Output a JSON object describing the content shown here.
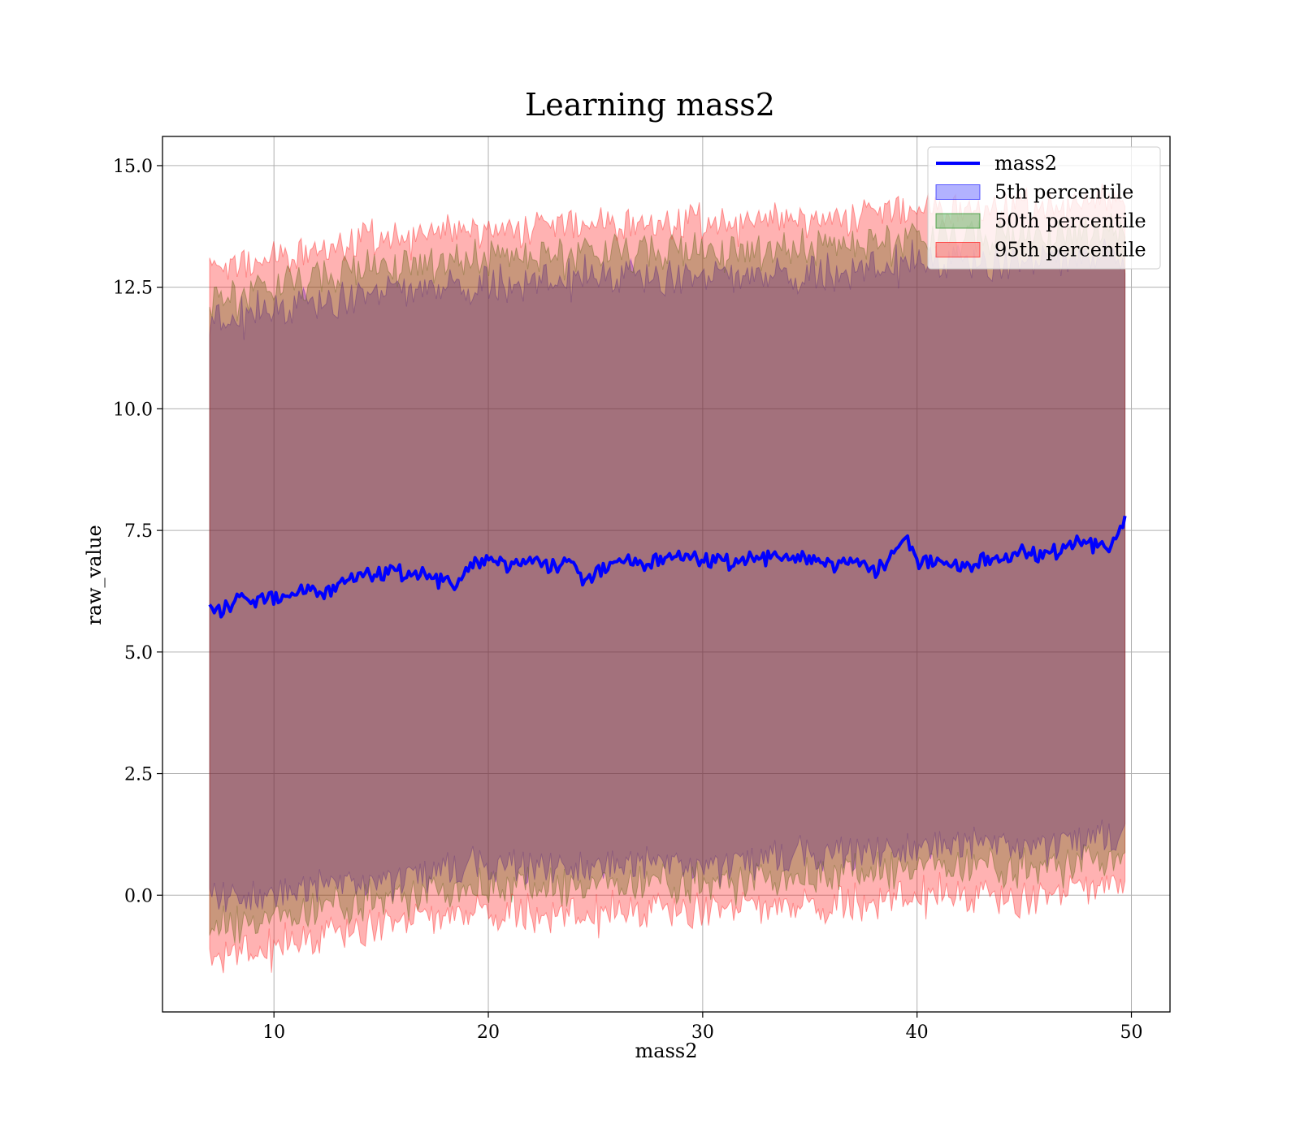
{
  "chart_data": {
    "type": "area",
    "title": "Learning mass2",
    "xlabel": "mass2",
    "ylabel": "raw_value",
    "xlim": [
      4.8,
      51.8
    ],
    "ylim": [
      -2.4,
      15.6
    ],
    "xticks": [
      10,
      20,
      30,
      40,
      50
    ],
    "xtick_labels": [
      "10",
      "20",
      "30",
      "40",
      "50"
    ],
    "yticks": [
      0.0,
      2.5,
      5.0,
      7.5,
      10.0,
      12.5,
      15.0
    ],
    "ytick_labels": [
      "0.0",
      "2.5",
      "5.0",
      "7.5",
      "10.0",
      "12.5",
      "15.0"
    ],
    "grid": true,
    "legend_position": "top-right",
    "x_range": [
      7.0,
      49.7
    ],
    "line": {
      "name": "mass2",
      "color": "#0000ff",
      "points": [
        [
          7.0,
          5.9
        ],
        [
          7.5,
          5.9
        ],
        [
          8.0,
          6.0
        ],
        [
          8.5,
          6.1
        ],
        [
          9.0,
          6.0
        ],
        [
          9.5,
          6.1
        ],
        [
          10.0,
          6.1
        ],
        [
          11.0,
          6.2
        ],
        [
          12.0,
          6.3
        ],
        [
          12.5,
          6.2
        ],
        [
          13.0,
          6.4
        ],
        [
          14.0,
          6.6
        ],
        [
          15.0,
          6.6
        ],
        [
          16.0,
          6.6
        ],
        [
          17.0,
          6.6
        ],
        [
          18.0,
          6.5
        ],
        [
          18.5,
          6.3
        ],
        [
          19.0,
          6.7
        ],
        [
          20.0,
          6.9
        ],
        [
          21.0,
          6.8
        ],
        [
          22.0,
          6.9
        ],
        [
          23.0,
          6.8
        ],
        [
          24.0,
          6.8
        ],
        [
          24.5,
          6.4
        ],
        [
          25.0,
          6.6
        ],
        [
          26.0,
          6.9
        ],
        [
          27.0,
          6.8
        ],
        [
          28.0,
          6.9
        ],
        [
          29.0,
          7.0
        ],
        [
          30.0,
          6.9
        ],
        [
          31.0,
          6.8
        ],
        [
          32.0,
          6.9
        ],
        [
          33.0,
          7.0
        ],
        [
          34.0,
          6.9
        ],
        [
          35.0,
          6.9
        ],
        [
          36.0,
          6.8
        ],
        [
          37.0,
          6.9
        ],
        [
          38.0,
          6.7
        ],
        [
          39.0,
          7.0
        ],
        [
          39.5,
          7.4
        ],
        [
          40.0,
          6.8
        ],
        [
          41.0,
          6.9
        ],
        [
          42.0,
          6.7
        ],
        [
          43.0,
          6.9
        ],
        [
          44.0,
          6.9
        ],
        [
          45.0,
          7.1
        ],
        [
          46.0,
          6.9
        ],
        [
          47.0,
          7.2
        ],
        [
          48.0,
          7.3
        ],
        [
          49.0,
          7.1
        ],
        [
          49.7,
          7.7
        ]
      ]
    },
    "series": [
      {
        "name": "5th percentile",
        "color": "#0000ff",
        "opacity": 0.3,
        "lower": [
          [
            7.0,
            0.0
          ],
          [
            10.0,
            0.0
          ],
          [
            15.0,
            0.3
          ],
          [
            20.0,
            0.6
          ],
          [
            25.0,
            0.6
          ],
          [
            30.0,
            0.6
          ],
          [
            35.0,
            0.8
          ],
          [
            40.0,
            1.0
          ],
          [
            45.0,
            1.0
          ],
          [
            49.7,
            1.2
          ]
        ],
        "upper": [
          [
            7.0,
            11.8
          ],
          [
            10.0,
            12.0
          ],
          [
            15.0,
            12.4
          ],
          [
            20.0,
            12.6
          ],
          [
            25.0,
            12.7
          ],
          [
            30.0,
            12.7
          ],
          [
            35.0,
            12.8
          ],
          [
            40.0,
            13.0
          ],
          [
            45.0,
            13.0
          ],
          [
            49.7,
            13.2
          ]
        ]
      },
      {
        "name": "50th percentile",
        "color": "#008000",
        "opacity": 0.3,
        "lower": [
          [
            7.0,
            -0.6
          ],
          [
            10.0,
            -0.5
          ],
          [
            15.0,
            -0.1
          ],
          [
            20.0,
            0.2
          ],
          [
            25.0,
            0.2
          ],
          [
            30.0,
            0.2
          ],
          [
            35.0,
            0.4
          ],
          [
            40.0,
            0.6
          ],
          [
            45.0,
            0.5
          ],
          [
            49.7,
            0.8
          ]
        ],
        "upper": [
          [
            7.0,
            12.2
          ],
          [
            10.0,
            12.5
          ],
          [
            15.0,
            12.9
          ],
          [
            20.0,
            13.1
          ],
          [
            25.0,
            13.2
          ],
          [
            30.0,
            13.2
          ],
          [
            35.0,
            13.3
          ],
          [
            40.0,
            13.5
          ],
          [
            45.0,
            13.5
          ],
          [
            49.7,
            13.7
          ]
        ]
      },
      {
        "name": "95th percentile",
        "color": "#ff0000",
        "opacity": 0.3,
        "lower": [
          [
            7.0,
            -1.2
          ],
          [
            10.0,
            -1.1
          ],
          [
            15.0,
            -0.6
          ],
          [
            20.0,
            -0.3
          ],
          [
            25.0,
            -0.4
          ],
          [
            30.0,
            -0.3
          ],
          [
            35.0,
            -0.2
          ],
          [
            40.0,
            0.0
          ],
          [
            45.0,
            -0.1
          ],
          [
            49.7,
            0.3
          ]
        ],
        "upper": [
          [
            7.0,
            12.8
          ],
          [
            10.0,
            13.1
          ],
          [
            15.0,
            13.5
          ],
          [
            20.0,
            13.7
          ],
          [
            25.0,
            13.8
          ],
          [
            30.0,
            13.8
          ],
          [
            35.0,
            13.9
          ],
          [
            40.0,
            14.1
          ],
          [
            45.0,
            14.1
          ],
          [
            49.7,
            14.3
          ]
        ]
      }
    ]
  }
}
